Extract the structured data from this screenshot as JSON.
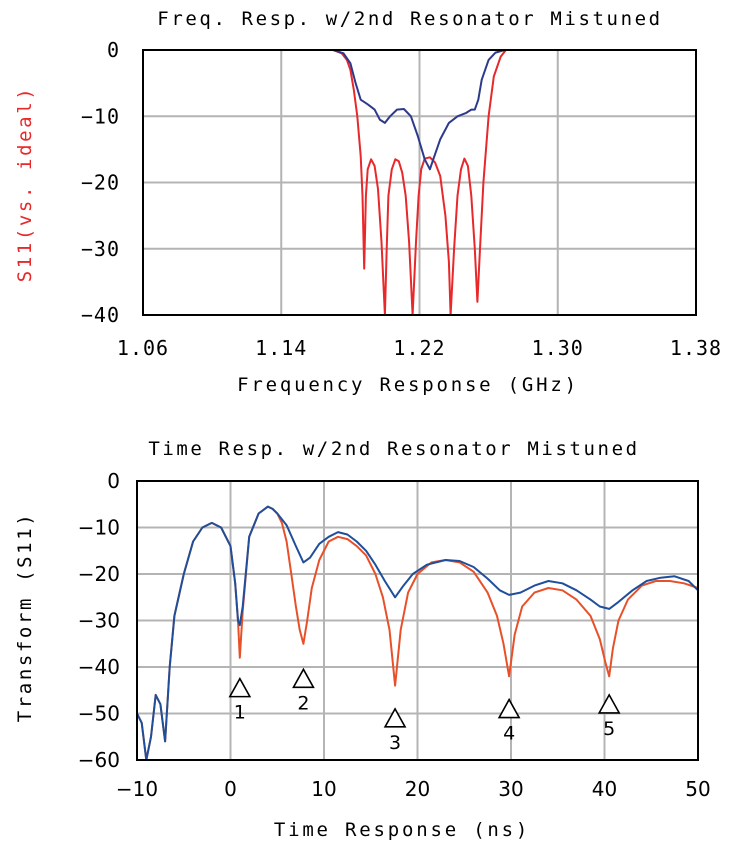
{
  "chart_data": [
    {
      "type": "line",
      "title": "Freq. Resp. w/2nd Resonator Mistuned",
      "xlabel": "Frequency Response (GHz)",
      "ylabel": "S11(vs. ideal)",
      "xlim": [
        1.06,
        1.38
      ],
      "ylim": [
        -40,
        0
      ],
      "x_ticks": [
        "1.06",
        "1.14",
        "1.22",
        "1.30",
        "1.38"
      ],
      "y_ticks": [
        "0",
        "−10",
        "−20",
        "−30",
        "−40"
      ],
      "grid": true,
      "colors": {
        "ideal": "#e8282a",
        "mistuned": "#2d3a8c",
        "ylabel": "#e8282a"
      },
      "series": [
        {
          "x": [
            1.06,
            1.17,
            1.175,
            1.178,
            1.18,
            1.182,
            1.184,
            1.186,
            1.187,
            1.188,
            1.189,
            1.19,
            1.192,
            1.194,
            1.196,
            1.198,
            1.2,
            1.201,
            1.202,
            1.204,
            1.206,
            1.208,
            1.21,
            1.212,
            1.214,
            1.216,
            1.218,
            1.2195,
            1.221,
            1.223,
            1.226,
            1.229,
            1.232,
            1.235,
            1.237,
            1.238,
            1.24,
            1.242,
            1.244,
            1.246,
            1.248,
            1.25,
            1.252,
            1.2535,
            1.255,
            1.257,
            1.26,
            1.263,
            1.267,
            1.27,
            1.38
          ],
          "values": [
            0,
            0,
            -0.5,
            -1.5,
            -3,
            -6,
            -10,
            -16,
            -22,
            -33,
            -22,
            -18,
            -16.5,
            -17.5,
            -21,
            -29,
            -40,
            -30,
            -22,
            -18,
            -16.5,
            -16.8,
            -18.5,
            -22,
            -29,
            -41,
            -29,
            -22,
            -18,
            -16.4,
            -16.2,
            -17,
            -19,
            -25,
            -32,
            -41,
            -30,
            -22,
            -18,
            -16.4,
            -17.5,
            -22,
            -30,
            -38,
            -30,
            -20,
            -10,
            -4,
            -1,
            0,
            0
          ]
        },
        {
          "x": [
            1.06,
            1.17,
            1.176,
            1.18,
            1.183,
            1.186,
            1.19,
            1.194,
            1.197,
            1.2,
            1.203,
            1.207,
            1.211,
            1.215,
            1.219,
            1.223,
            1.226,
            1.228,
            1.232,
            1.237,
            1.242,
            1.247,
            1.25,
            1.252,
            1.254,
            1.256,
            1.26,
            1.264,
            1.268,
            1.27,
            1.38
          ],
          "values": [
            0,
            0,
            -0.5,
            -2,
            -5,
            -7.5,
            -8.2,
            -9,
            -10.5,
            -11,
            -10,
            -9,
            -8.9,
            -10,
            -13,
            -16.5,
            -18,
            -16.5,
            -13.5,
            -11,
            -10,
            -9.5,
            -9,
            -9,
            -7.5,
            -4.5,
            -1.5,
            -0.4,
            -0.1,
            0,
            0
          ]
        }
      ]
    },
    {
      "type": "line",
      "title": "Time Resp. w/2nd Resonator Mistuned",
      "xlabel": "Time Response (ns)",
      "ylabel": "Transform (S11)",
      "xlim": [
        -10,
        50
      ],
      "ylim": [
        -60,
        0
      ],
      "x_ticks": [
        "−10",
        "0",
        "10",
        "20",
        "30",
        "40",
        "50"
      ],
      "y_ticks": [
        "0",
        "−10",
        "−20",
        "−30",
        "−40",
        "−50",
        "−60"
      ],
      "grid": true,
      "colors": {
        "ideal": "#e8502a",
        "mistuned": "#1f4f9a"
      },
      "markers": [
        {
          "label": "1",
          "x": 1.0,
          "y": -42.5
        },
        {
          "label": "2",
          "x": 7.8,
          "y": -40.5
        },
        {
          "label": "3",
          "x": 17.6,
          "y": -49
        },
        {
          "label": "4",
          "x": 29.8,
          "y": -47
        },
        {
          "label": "5",
          "x": 40.5,
          "y": -46
        }
      ],
      "series": [
        {
          "x": [
            -10,
            -9.5,
            -9,
            -8.5,
            -8,
            -7.5,
            -7,
            -6.5,
            -6,
            -5,
            -4,
            -3,
            -2,
            -1,
            0,
            0.5,
            0.8,
            1.0,
            1.3,
            2,
            3,
            4,
            4.5,
            5,
            5.5,
            6,
            6.5,
            7,
            7.4,
            7.8,
            8.2,
            8.7,
            9.5,
            10.5,
            11.5,
            12.5,
            13.5,
            14.5,
            15.5,
            16.3,
            17.0,
            17.6,
            18.2,
            19,
            20,
            21.5,
            23,
            24.5,
            26,
            27.5,
            28.5,
            29.2,
            29.8,
            30.4,
            31.2,
            32.5,
            34,
            35.5,
            37,
            38.5,
            39.5,
            40.1,
            40.5,
            40.9,
            41.5,
            42.5,
            44,
            45.5,
            47,
            48.5,
            50
          ],
          "values": [
            -50,
            -52,
            -60,
            -55,
            -46,
            -48,
            -56,
            -40,
            -29,
            -20,
            -13,
            -10,
            -9,
            -10,
            -14,
            -22,
            -30,
            -38,
            -28,
            -12,
            -7,
            -5.5,
            -6,
            -7,
            -9,
            -13,
            -20,
            -27,
            -32,
            -35,
            -30,
            -23,
            -17,
            -13,
            -12,
            -12.5,
            -14,
            -16,
            -20,
            -25,
            -32,
            -44,
            -32,
            -24,
            -20,
            -17.5,
            -17,
            -17.5,
            -19.5,
            -24,
            -29,
            -35,
            -42,
            -33,
            -27,
            -24,
            -23,
            -23.5,
            -25.5,
            -29,
            -34,
            -39,
            -42,
            -36,
            -30,
            -25.5,
            -22.5,
            -21.5,
            -21.5,
            -22,
            -23
          ]
        },
        {
          "x": [
            -10,
            -9.5,
            -9,
            -8.5,
            -8,
            -7.5,
            -7,
            -6.5,
            -6,
            -5,
            -4,
            -3,
            -2,
            -1,
            0,
            0.5,
            0.8,
            1.0,
            1.3,
            2,
            3,
            4,
            4.5,
            5,
            6,
            7,
            7.8,
            8.5,
            9.5,
            10.5,
            11.5,
            12.5,
            13.5,
            14.5,
            15.5,
            16.5,
            17.6,
            18.5,
            19.5,
            21,
            23,
            24.5,
            26,
            27.5,
            28.8,
            29.8,
            31,
            32.5,
            34,
            35.5,
            37,
            38.5,
            39.5,
            40.5,
            41.5,
            43,
            44.5,
            46,
            47.5,
            49,
            50
          ],
          "values": [
            -50,
            -52,
            -60,
            -55,
            -46,
            -48,
            -56,
            -40,
            -29,
            -20,
            -13,
            -10,
            -9,
            -10,
            -14,
            -22,
            -30,
            -31,
            -27,
            -12,
            -7,
            -5.5,
            -6,
            -7,
            -9.5,
            -14,
            -17.5,
            -16.5,
            -13.5,
            -12,
            -11,
            -11.5,
            -13,
            -15,
            -18,
            -21.5,
            -25,
            -22.5,
            -20,
            -18,
            -17,
            -17.2,
            -18.5,
            -21,
            -23.5,
            -24.5,
            -24,
            -22.5,
            -21.5,
            -22,
            -23.5,
            -25.5,
            -27,
            -27.5,
            -26,
            -23.5,
            -21.5,
            -20.8,
            -20.5,
            -21.5,
            -23.5
          ]
        }
      ]
    }
  ]
}
